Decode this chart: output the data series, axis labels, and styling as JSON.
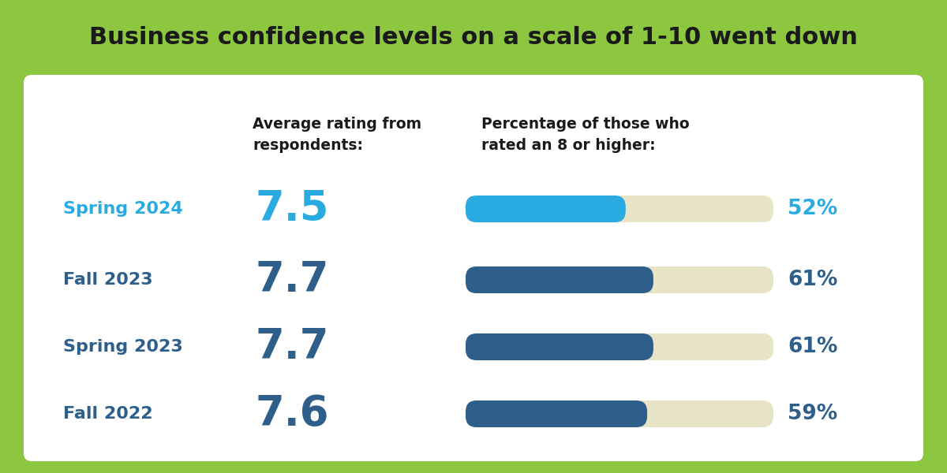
{
  "title": "Business confidence levels on a scale of 1-10 went down",
  "title_bg_color": "#8dc63f",
  "title_font_size": 22,
  "bg_color": "#8dc63f",
  "white_box_color": "#ffffff",
  "header_avg": "Average rating from\nrespondents:",
  "header_pct": "Percentage of those who\nrated an 8 or higher:",
  "rows": [
    {
      "label": "Spring 2024",
      "rating": "7.5",
      "pct": 52,
      "label_color": "#29abe2",
      "bar_color": "#29abe2",
      "rating_color": "#29abe2",
      "pct_color": "#29abe2"
    },
    {
      "label": "Fall 2023",
      "rating": "7.7",
      "pct": 61,
      "label_color": "#2e5f8a",
      "bar_color": "#2e5f8a",
      "rating_color": "#2e5f8a",
      "pct_color": "#2e5f8a"
    },
    {
      "label": "Spring 2023",
      "rating": "7.7",
      "pct": 61,
      "label_color": "#2e5f8a",
      "bar_color": "#2e5f8a",
      "rating_color": "#2e5f8a",
      "pct_color": "#2e5f8a"
    },
    {
      "label": "Fall 2022",
      "rating": "7.6",
      "pct": 59,
      "label_color": "#2e5f8a",
      "bar_color": "#2e5f8a",
      "rating_color": "#2e5f8a",
      "pct_color": "#2e5f8a"
    }
  ],
  "bar_bg_color": "#e8e4c8",
  "bar_max": 100,
  "header_color": "#1a1a1a",
  "header_fontsize": 13.5,
  "label_fontsize": 16,
  "rating_fontsize": 38,
  "pct_fontsize": 19
}
